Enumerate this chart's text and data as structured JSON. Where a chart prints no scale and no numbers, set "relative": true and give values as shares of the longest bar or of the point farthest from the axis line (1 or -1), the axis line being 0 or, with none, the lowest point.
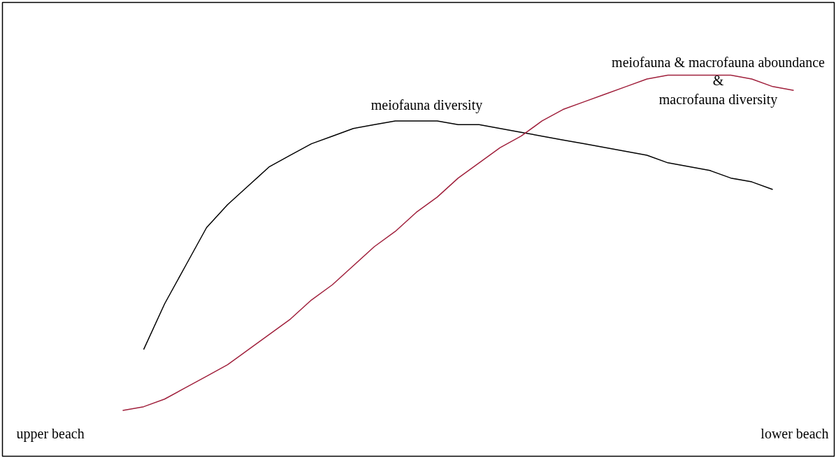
{
  "chart_data": {
    "type": "line",
    "relative": true,
    "categories": [
      null,
      null,
      null,
      null,
      null,
      null,
      null,
      null,
      null,
      null,
      null,
      null,
      null,
      null,
      null,
      null,
      null,
      null,
      null,
      null,
      null,
      null,
      null,
      null,
      null,
      null,
      null,
      null,
      null,
      null,
      null,
      null,
      null
    ],
    "series": [
      {
        "name": "meiofauna diversity",
        "color": "#000000",
        "values": [
          null,
          0.28,
          0.4,
          0.5,
          0.6,
          0.66,
          0.71,
          0.76,
          0.79,
          0.82,
          0.84,
          0.86,
          0.87,
          0.88,
          0.88,
          0.88,
          0.87,
          0.87,
          0.86,
          0.85,
          0.84,
          0.83,
          0.82,
          0.81,
          0.8,
          0.79,
          0.77,
          0.76,
          0.75,
          0.73,
          0.72,
          0.7,
          null
        ]
      },
      {
        "name": "meiofauna & macrofauna aboundance\n&\nmacrofauna diversity",
        "color": "#a0203c",
        "values": [
          0.12,
          0.13,
          0.15,
          0.18,
          0.21,
          0.24,
          0.28,
          0.32,
          0.36,
          0.41,
          0.45,
          0.5,
          0.55,
          0.59,
          0.64,
          0.68,
          0.73,
          0.77,
          0.81,
          0.84,
          0.88,
          0.91,
          0.93,
          0.95,
          0.97,
          0.99,
          1.0,
          1.0,
          1.0,
          1.0,
          0.99,
          0.97,
          0.96
        ]
      }
    ],
    "annotations": [
      "upper beach",
      "lower beach"
    ],
    "grid": false,
    "legend": false,
    "marker": "none",
    "line_style": "solid"
  }
}
